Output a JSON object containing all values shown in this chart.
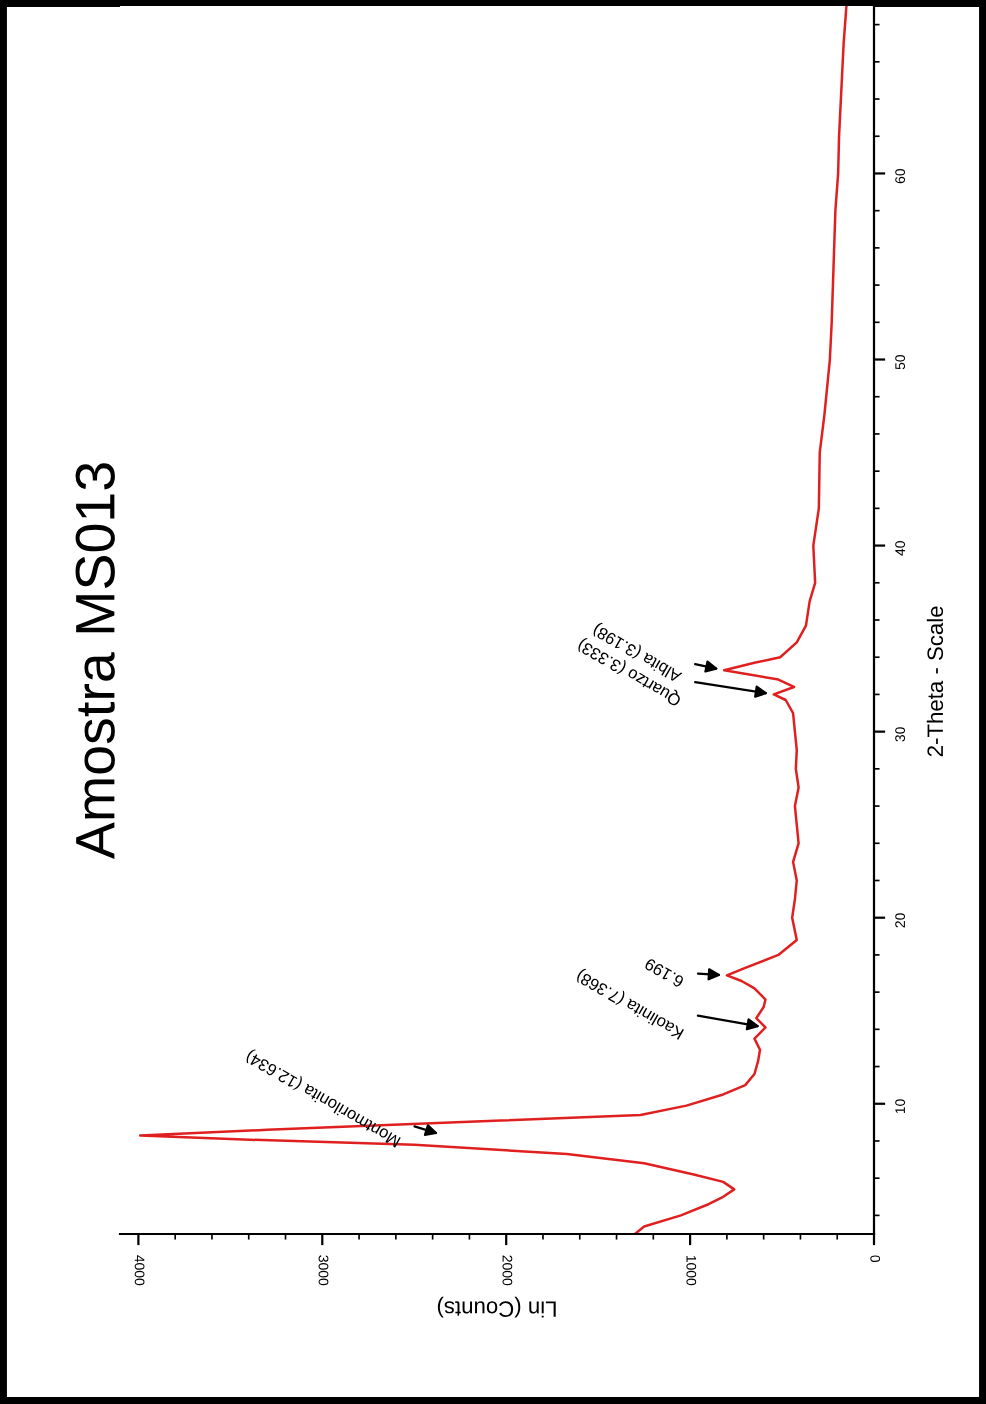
{
  "chart_data": {
    "type": "line",
    "title": "Amostra MS013",
    "xlabel": "Lin (Counts)",
    "ylabel": "2-Theta - Scale",
    "x": [
      1300,
      1250,
      1050,
      900,
      820,
      760,
      820,
      980,
      1250,
      1670,
      2500,
      3500,
      3990,
      3300,
      2030,
      1270,
      1020,
      820,
      700,
      650,
      630,
      620,
      650,
      590,
      640,
      600,
      590,
      650,
      720,
      800,
      700,
      520,
      420,
      445,
      430,
      420,
      440,
      410,
      420,
      430,
      410,
      425,
      420,
      430,
      440,
      480,
      545,
      435,
      520,
      815,
      650,
      510,
      420,
      370,
      350,
      320,
      330,
      300,
      295,
      270,
      240,
      230,
      220,
      210,
      195,
      190,
      175,
      165,
      150
    ],
    "series": [
      {
        "color": "#e02020",
        "values": [
          3.0,
          3.4,
          4.0,
          4.6,
          5.0,
          5.4,
          5.8,
          6.2,
          6.8,
          7.3,
          7.8,
          8.1,
          8.3,
          8.6,
          9.1,
          9.4,
          9.9,
          10.5,
          11.0,
          11.6,
          12.3,
          12.9,
          13.5,
          14.1,
          14.6,
          15.2,
          15.6,
          16.2,
          16.6,
          16.9,
          17.3,
          18.0,
          18.8,
          20,
          21,
          22,
          23,
          24,
          25,
          26,
          27,
          28,
          29,
          30,
          31,
          31.7,
          32.0,
          32.4,
          32.8,
          33.3,
          33.7,
          34.0,
          34.8,
          35.7,
          37,
          38,
          40,
          42,
          45,
          47,
          50,
          52,
          55,
          58,
          60,
          62,
          65,
          67,
          69
        ]
      }
    ],
    "ylim": [
      3,
      69
    ],
    "yticks": [
      {
        "value": 4,
        "label": null
      },
      {
        "value": 6,
        "label": null
      },
      {
        "value": 8,
        "label": null
      },
      10,
      {
        "value": 12,
        "label": null
      },
      {
        "value": 14,
        "label": null
      },
      {
        "value": 16,
        "label": null
      },
      {
        "value": 18,
        "label": null
      },
      20,
      {
        "value": 22,
        "label": null
      },
      {
        "value": 24,
        "label": null
      },
      {
        "value": 26,
        "label": null
      },
      {
        "value": 28,
        "label": null
      },
      30,
      {
        "value": 32,
        "label": null
      },
      {
        "value": 34,
        "label": null
      },
      {
        "value": 36,
        "label": null
      },
      {
        "value": 38,
        "label": null
      },
      40,
      {
        "value": 42,
        "label": null
      },
      {
        "value": 44,
        "label": null
      },
      {
        "value": 46,
        "label": null
      },
      {
        "value": 48,
        "label": null
      },
      50,
      {
        "value": 52,
        "label": null
      },
      {
        "value": 54,
        "label": null
      },
      {
        "value": 56,
        "label": null
      },
      {
        "value": 58,
        "label": null
      },
      60,
      {
        "value": 62,
        "label": null
      },
      {
        "value": 64,
        "label": null
      },
      {
        "value": 66,
        "label": null
      },
      {
        "value": 68,
        "label": null
      }
    ],
    "xlim": [
      4100,
      0
    ],
    "xticks": [
      0,
      {
        "value": 200,
        "label": null
      },
      {
        "value": 400,
        "label": null
      },
      {
        "value": 600,
        "label": null
      },
      {
        "value": 800,
        "label": null
      },
      1000,
      {
        "value": 1200,
        "label": null
      },
      {
        "value": 1400,
        "label": null
      },
      {
        "value": 1600,
        "label": null
      },
      {
        "value": 1800,
        "label": null
      },
      2000,
      {
        "value": 2200,
        "label": null
      },
      {
        "value": 2400,
        "label": null
      },
      {
        "value": 2600,
        "label": null
      },
      {
        "value": 2800,
        "label": null
      },
      3000,
      {
        "value": 3200,
        "label": null
      },
      {
        "value": 3400,
        "label": null
      },
      {
        "value": 3600,
        "label": null
      },
      {
        "value": 3800,
        "label": null
      },
      4000
    ],
    "grid": false,
    "annotations": [
      {
        "text": "Montmorilonita (12.634)",
        "x": 2340,
        "y": 8.3
      },
      {
        "text": "Kaolinita (7.368)",
        "x": 590,
        "y": 14.1
      },
      {
        "text": "6.199",
        "x": 800,
        "y": 16.9
      },
      {
        "text": "Quartzo (3.333)",
        "x": 545,
        "y": 32.0
      },
      {
        "text": "Albita (3.198)",
        "x": 815,
        "y": 33.3
      }
    ]
  }
}
